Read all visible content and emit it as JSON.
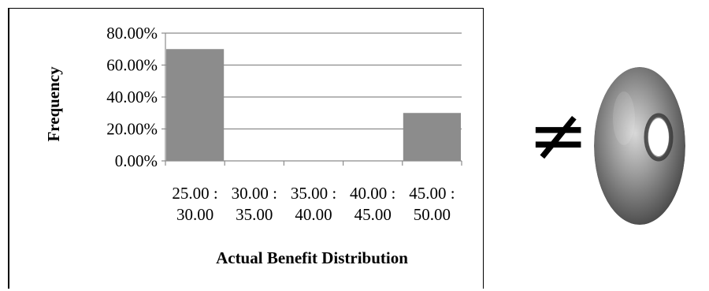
{
  "chart_data": {
    "type": "bar",
    "categories": [
      [
        "25.00 :",
        "30.00"
      ],
      [
        "30.00 :",
        "35.00"
      ],
      [
        "35.00 :",
        "40.00"
      ],
      [
        "40.00 :",
        "45.00"
      ],
      [
        "45.00 :",
        "50.00"
      ]
    ],
    "values": [
      70,
      0,
      0,
      0,
      30
    ],
    "yticks": [
      "0.00%",
      "20.00%",
      "40.00%",
      "60.00%",
      "80.00%"
    ],
    "ylim": [
      0,
      80
    ],
    "xlabel": "Actual Benefit Distribution",
    "ylabel": "Frequency",
    "grid": true,
    "bar_color": "#8c8c8c",
    "grid_color": "#8c8c8c"
  },
  "symbol": "≠",
  "image": {
    "icon": "donut-icon"
  }
}
